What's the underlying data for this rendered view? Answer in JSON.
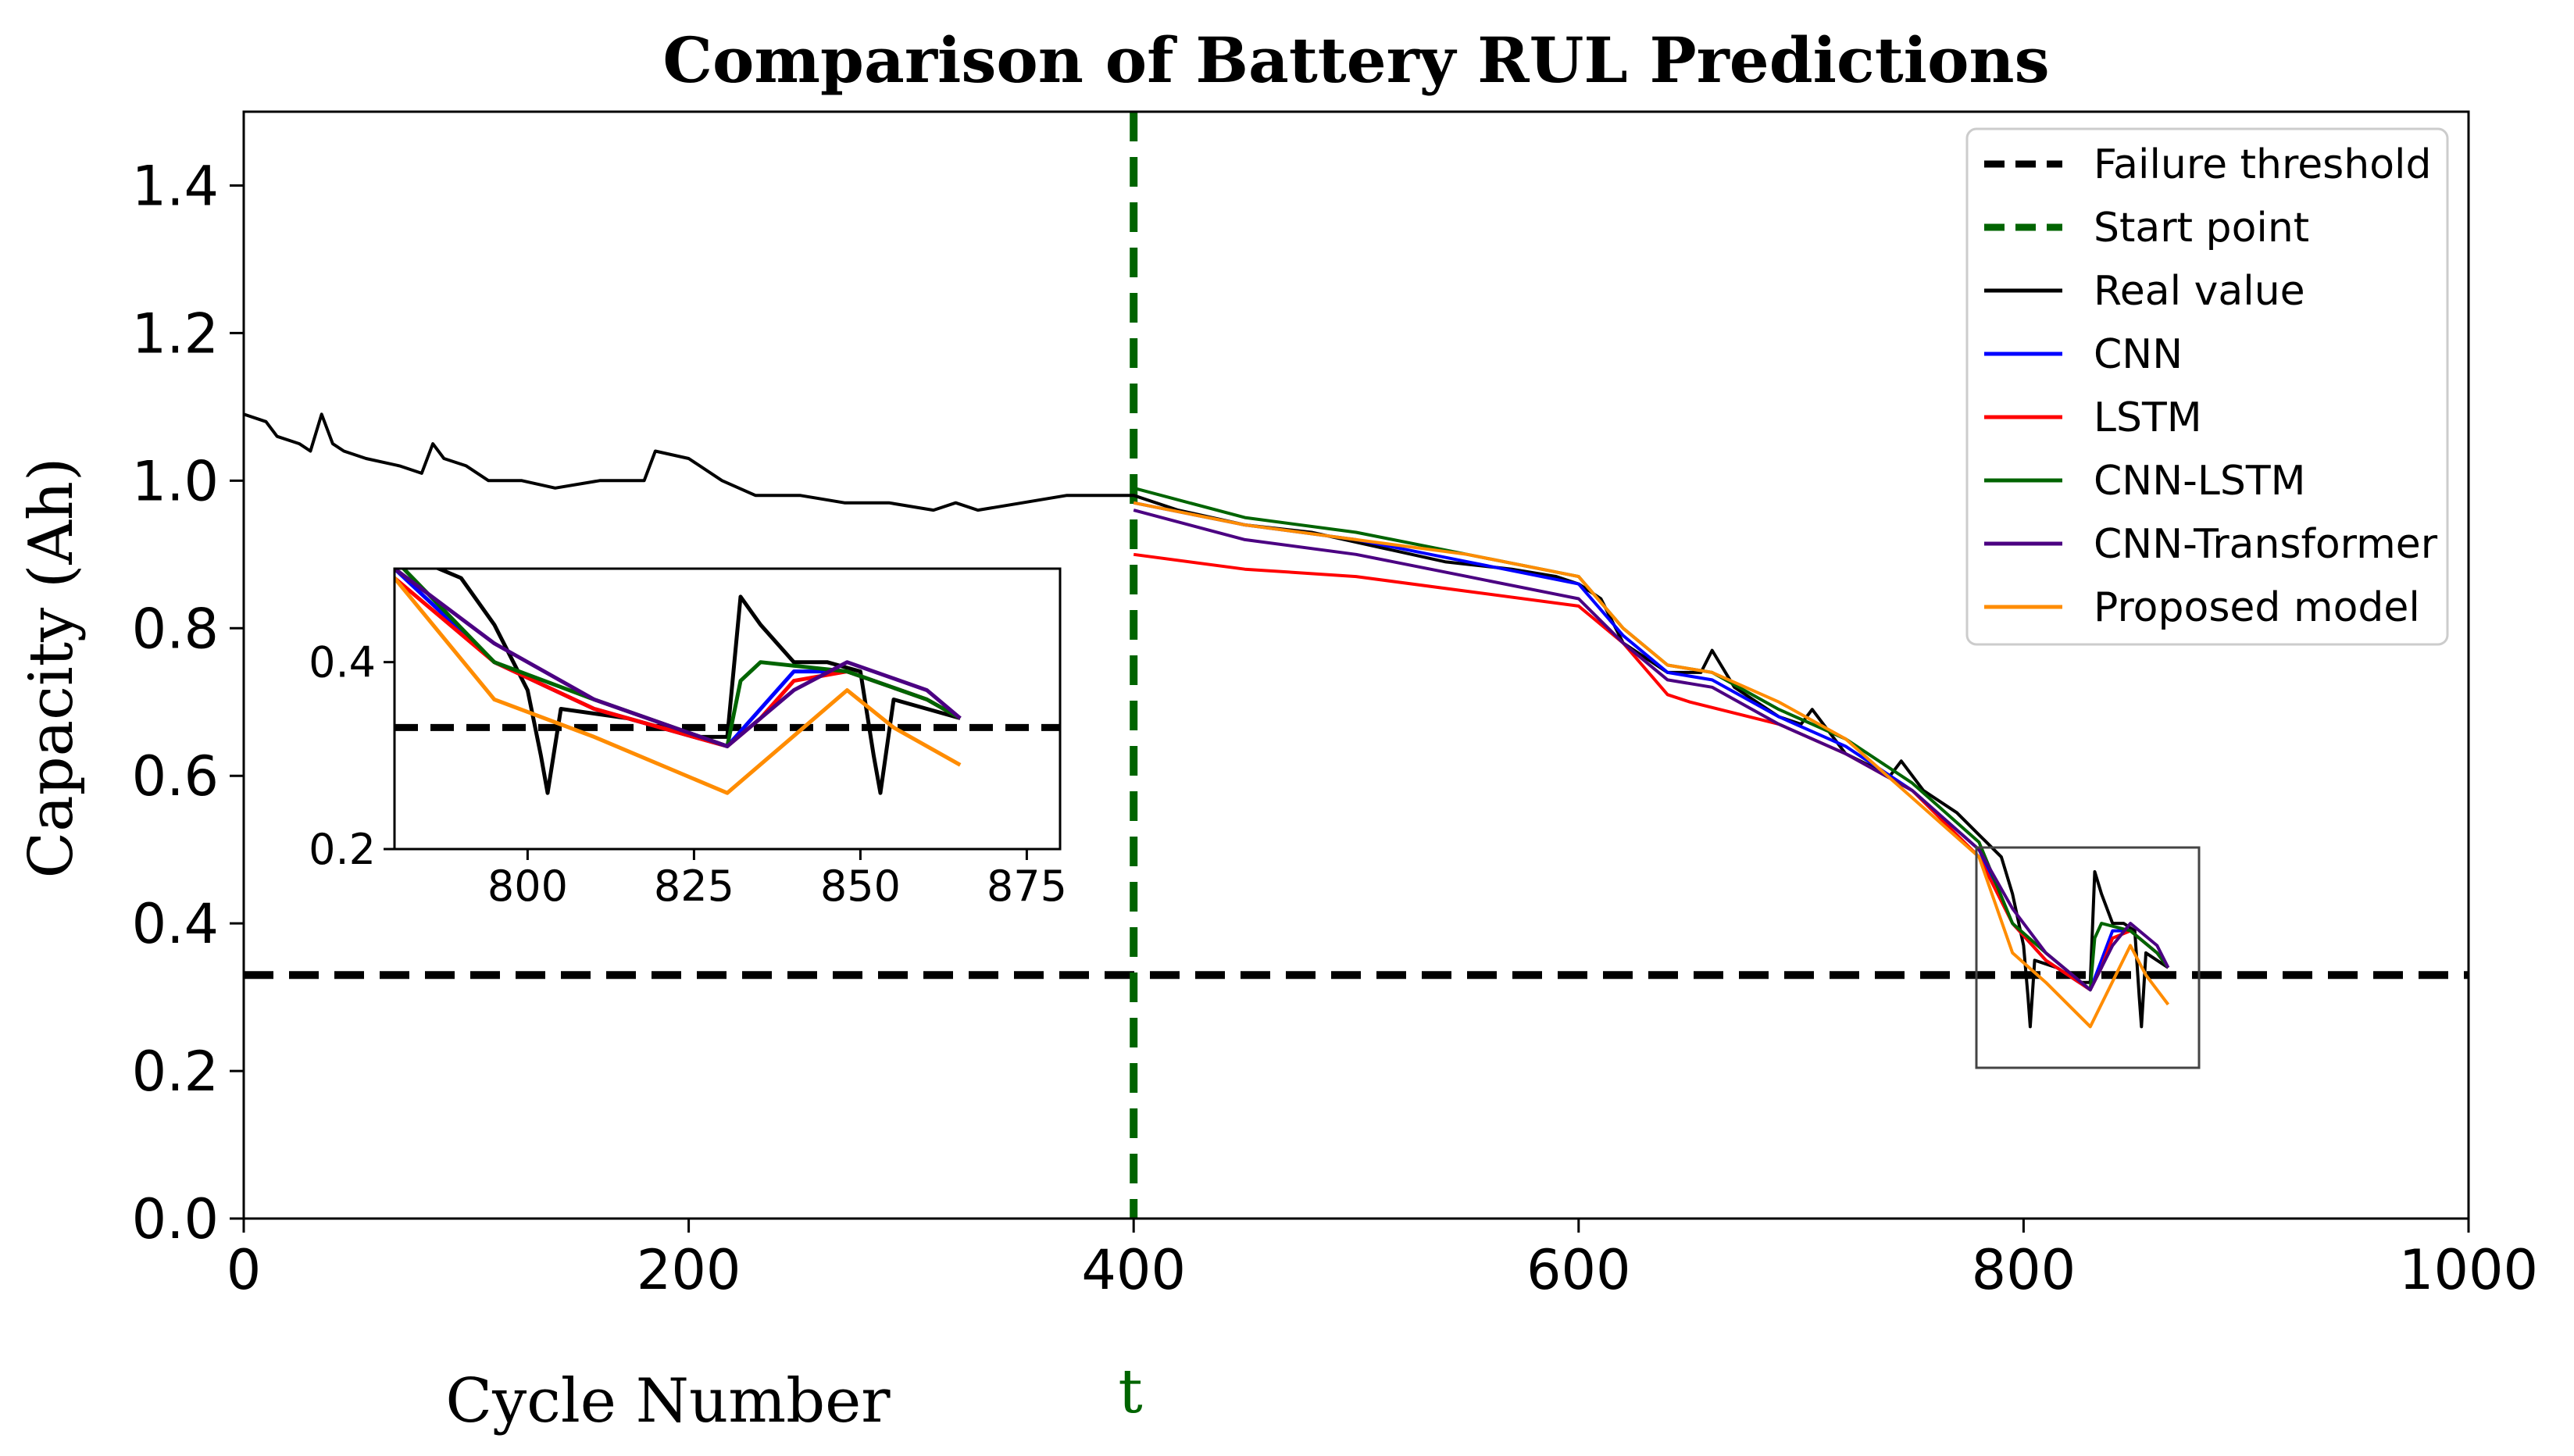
{
  "chart_data": {
    "type": "line",
    "title": "Comparison of Battery RUL Predictions",
    "xlabel": "Cycle Number",
    "ylabel": "Capacity (Ah)",
    "xlim": [
      0,
      1000
    ],
    "ylim": [
      0,
      1.5
    ],
    "xticks": [
      0,
      200,
      400,
      600,
      800,
      1000
    ],
    "yticks": [
      0.0,
      0.2,
      0.4,
      0.6,
      0.8,
      1.0,
      1.2,
      1.4
    ],
    "xtick_labels": [
      "0",
      "200",
      "400",
      "600",
      "800",
      "1000"
    ],
    "ytick_labels": [
      "0.0",
      "0.2",
      "0.4",
      "0.6",
      "0.8",
      "1.0",
      "1.2",
      "1.4"
    ],
    "start_point": 400,
    "start_point_label": "t",
    "failure_threshold": 0.33,
    "legend_position": "top-right",
    "series": [
      {
        "name": "Failure threshold",
        "color": "#000000",
        "style": "dashed"
      },
      {
        "name": "Start point",
        "color": "#006400",
        "style": "dashed"
      },
      {
        "name": "Real value",
        "color": "#000000",
        "style": "solid",
        "x": [
          0,
          10,
          15,
          25,
          30,
          35,
          40,
          45,
          55,
          70,
          80,
          85,
          90,
          100,
          110,
          125,
          140,
          160,
          180,
          185,
          200,
          215,
          230,
          250,
          270,
          290,
          310,
          320,
          330,
          350,
          370,
          390,
          400,
          420,
          450,
          480,
          510,
          540,
          570,
          590,
          600,
          610,
          620,
          640,
          655,
          660,
          670,
          690,
          700,
          705,
          720,
          740,
          745,
          755,
          770,
          780,
          790,
          795,
          800,
          802,
          803,
          805,
          815,
          825,
          830,
          832,
          835,
          840,
          845,
          850,
          852,
          853,
          855,
          860,
          865
        ],
        "y": [
          1.09,
          1.08,
          1.06,
          1.05,
          1.04,
          1.09,
          1.05,
          1.04,
          1.03,
          1.02,
          1.01,
          1.05,
          1.03,
          1.02,
          1.0,
          1.0,
          0.99,
          1.0,
          1.0,
          1.04,
          1.03,
          1.0,
          0.98,
          0.98,
          0.97,
          0.97,
          0.96,
          0.97,
          0.96,
          0.97,
          0.98,
          0.98,
          0.98,
          0.96,
          0.94,
          0.93,
          0.91,
          0.89,
          0.88,
          0.87,
          0.86,
          0.84,
          0.78,
          0.74,
          0.74,
          0.77,
          0.72,
          0.68,
          0.67,
          0.69,
          0.63,
          0.6,
          0.62,
          0.58,
          0.55,
          0.52,
          0.49,
          0.44,
          0.37,
          0.3,
          0.26,
          0.35,
          0.34,
          0.32,
          0.32,
          0.47,
          0.44,
          0.4,
          0.4,
          0.39,
          0.3,
          0.26,
          0.36,
          0.35,
          0.34
        ]
      },
      {
        "name": "CNN",
        "color": "#0000ff",
        "style": "solid",
        "x": [
          400,
          450,
          500,
          550,
          600,
          620,
          640,
          660,
          690,
          720,
          750,
          780,
          795,
          810,
          830,
          835,
          840,
          848,
          860,
          865
        ],
        "y": [
          0.97,
          0.94,
          0.92,
          0.89,
          0.86,
          0.79,
          0.74,
          0.73,
          0.68,
          0.64,
          0.58,
          0.5,
          0.4,
          0.35,
          0.31,
          0.35,
          0.39,
          0.39,
          0.36,
          0.34
        ]
      },
      {
        "name": "LSTM",
        "color": "#ff0000",
        "style": "solid",
        "x": [
          400,
          450,
          500,
          550,
          600,
          620,
          640,
          650,
          690,
          720,
          750,
          780,
          795,
          810,
          830,
          835,
          840,
          848,
          860,
          865
        ],
        "y": [
          0.9,
          0.88,
          0.87,
          0.85,
          0.83,
          0.78,
          0.71,
          0.7,
          0.67,
          0.63,
          0.58,
          0.49,
          0.4,
          0.35,
          0.31,
          0.34,
          0.38,
          0.39,
          0.36,
          0.34
        ]
      },
      {
        "name": "CNN-LSTM",
        "color": "#006400",
        "style": "solid",
        "x": [
          400,
          450,
          500,
          550,
          600,
          620,
          640,
          660,
          690,
          720,
          750,
          780,
          795,
          810,
          830,
          832,
          835,
          848,
          860,
          865
        ],
        "y": [
          0.99,
          0.95,
          0.93,
          0.9,
          0.87,
          0.8,
          0.75,
          0.74,
          0.69,
          0.65,
          0.59,
          0.51,
          0.4,
          0.36,
          0.31,
          0.38,
          0.4,
          0.39,
          0.36,
          0.34
        ]
      },
      {
        "name": "CNN-Transformer",
        "color": "#4b0082",
        "style": "solid",
        "x": [
          400,
          450,
          500,
          550,
          600,
          620,
          640,
          660,
          690,
          720,
          750,
          780,
          795,
          810,
          830,
          840,
          848,
          860,
          865
        ],
        "y": [
          0.96,
          0.92,
          0.9,
          0.87,
          0.84,
          0.78,
          0.73,
          0.72,
          0.67,
          0.63,
          0.58,
          0.5,
          0.42,
          0.36,
          0.31,
          0.37,
          0.4,
          0.37,
          0.34
        ]
      },
      {
        "name": "Proposed model",
        "color": "#ff8c00",
        "style": "solid",
        "x": [
          400,
          450,
          500,
          550,
          600,
          620,
          640,
          660,
          690,
          720,
          750,
          780,
          795,
          810,
          830,
          848,
          855,
          865
        ],
        "y": [
          0.97,
          0.94,
          0.92,
          0.9,
          0.87,
          0.8,
          0.75,
          0.74,
          0.7,
          0.65,
          0.57,
          0.49,
          0.36,
          0.32,
          0.26,
          0.37,
          0.33,
          0.29
        ]
      }
    ],
    "inset": {
      "xlim": [
        780,
        880
      ],
      "ylim": [
        0.2,
        0.5
      ],
      "xticks": [
        800,
        825,
        850,
        875
      ],
      "yticks": [
        0.2,
        0.4
      ],
      "xtick_labels": [
        "800",
        "825",
        "850",
        "875"
      ],
      "ytick_labels": [
        "0.2",
        "0.4"
      ],
      "zoom_box": {
        "x": [
          780,
          880
        ],
        "y": [
          0.2,
          0.5
        ]
      }
    }
  }
}
